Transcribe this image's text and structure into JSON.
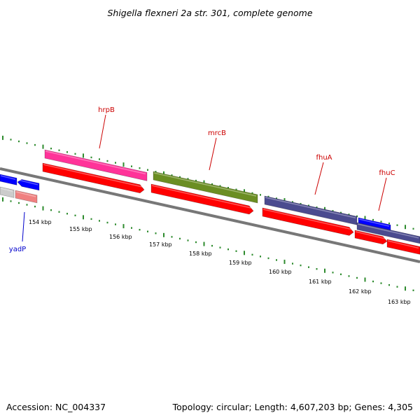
{
  "title": "Shigella flexneri 2a str. 301, complete genome",
  "footer": {
    "accession": "Accession: NC_004337",
    "topology": "Topology: circular; Length: 4,607,203 bp; Genes: 4,305"
  },
  "scale_labels": [
    "154 kbp",
    "155 kbp",
    "156 kbp",
    "157 kbp",
    "158 kbp",
    "159 kbp",
    "160 kbp",
    "161 kbp",
    "162 kbp",
    "163 kbp"
  ],
  "gene_labels": [
    {
      "name": "hrpB",
      "color": "#cc0000"
    },
    {
      "name": "mrcB",
      "color": "#cc0000"
    },
    {
      "name": "fhuA",
      "color": "#cc0000"
    },
    {
      "name": "fhuC",
      "color": "#cc0000"
    },
    {
      "name": "yadP",
      "color": "#0000cc"
    }
  ],
  "colors": {
    "backbone": "#808080",
    "tick": "#2e8b2e",
    "cds_red": "#ff0000",
    "hrpB": "#ff3399",
    "mrcB": "#6b8e23",
    "fhuA": "#4b4b8f",
    "blue": "#0000ff",
    "grey_feature": "#cccccc",
    "pink_feature": "#f08080"
  }
}
